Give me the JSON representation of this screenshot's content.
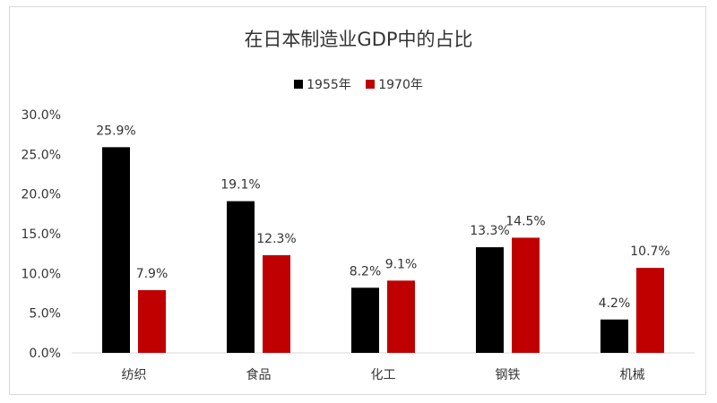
{
  "chart_data": {
    "type": "bar",
    "title": "在日本制造业GDP中的占比",
    "categories": [
      "纺织",
      "食品",
      "化工",
      "钢铁",
      "机械"
    ],
    "series": [
      {
        "name": "1955年",
        "values": [
          25.9,
          19.1,
          8.2,
          13.3,
          4.2
        ],
        "labels": [
          "25.9%",
          "19.1%",
          "8.2%",
          "13.3%",
          "4.2%"
        ],
        "color": "#000000"
      },
      {
        "name": "1970年",
        "values": [
          7.9,
          12.3,
          9.1,
          14.5,
          10.7
        ],
        "labels": [
          "7.9%",
          "12.3%",
          "9.1%",
          "14.5%",
          "10.7%"
        ],
        "color": "#c00000"
      }
    ],
    "ylim": [
      0,
      30
    ],
    "yticks": [
      0,
      5,
      10,
      15,
      20,
      25,
      30
    ],
    "ytick_labels": [
      "0.0%",
      "5.0%",
      "10.0%",
      "15.0%",
      "20.0%",
      "25.0%",
      "30.0%"
    ],
    "xlabel": "",
    "ylabel": "",
    "grid": false,
    "legend_position": "top"
  }
}
